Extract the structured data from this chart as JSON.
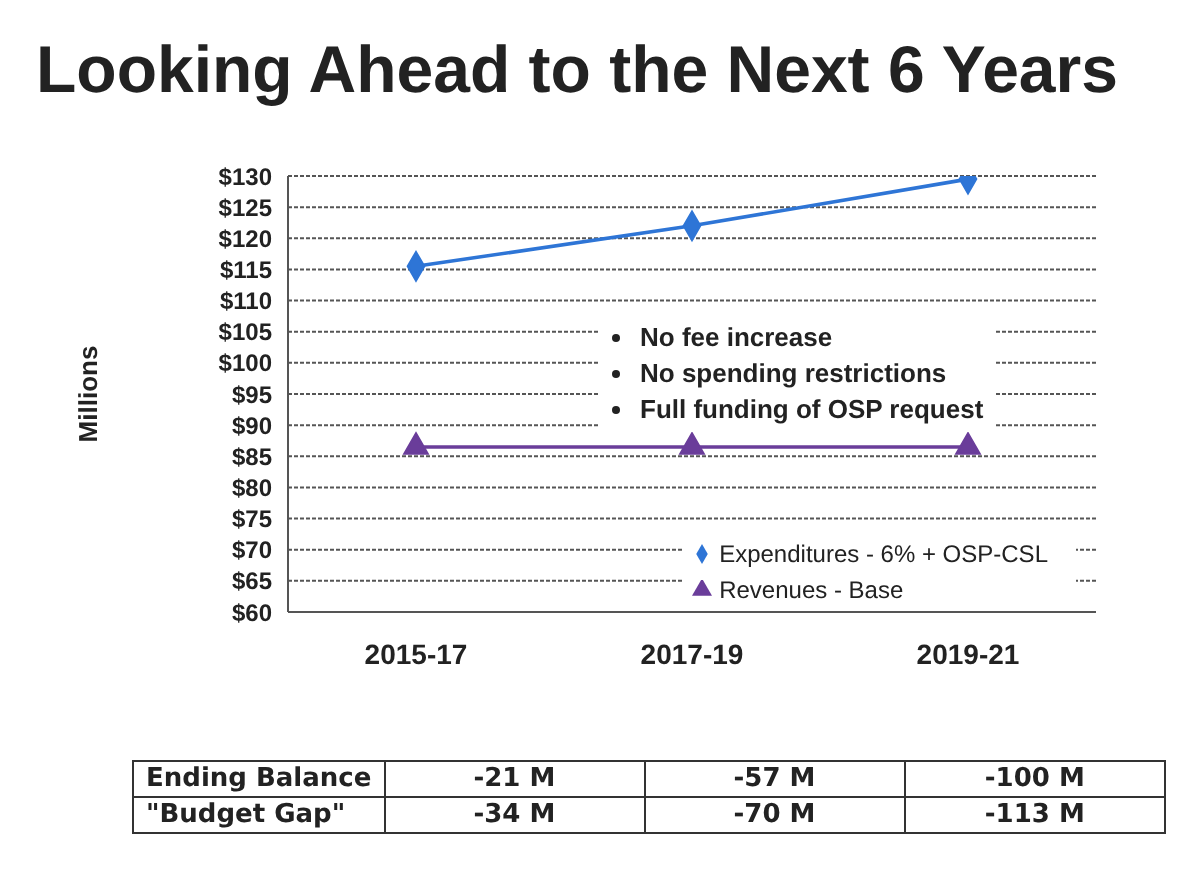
{
  "chart_data": {
    "type": "line",
    "title": "Looking Ahead to the Next 6 Years",
    "ylabel": "Millions",
    "categories": [
      "2015-17",
      "2017-19",
      "2019-21"
    ],
    "series": [
      {
        "name": "Expenditures - 6% + OSP-CSL",
        "color": "#2e75d6",
        "marker": "diamond",
        "values": [
          115.5,
          122,
          129.5
        ]
      },
      {
        "name": "Revenues - Base",
        "color": "#6a3d9a",
        "marker": "triangle",
        "values": [
          86.5,
          86.5,
          86.5
        ]
      }
    ],
    "ylim": [
      60,
      130
    ],
    "yticks": [
      {
        "value": 60,
        "label": "$60"
      },
      {
        "value": 65,
        "label": "$65"
      },
      {
        "value": 70,
        "label": "$70"
      },
      {
        "value": 75,
        "label": "$75"
      },
      {
        "value": 80,
        "label": "$80"
      },
      {
        "value": 85,
        "label": "$85"
      },
      {
        "value": 90,
        "label": "$90"
      },
      {
        "value": 95,
        "label": "$95"
      },
      {
        "value": 100,
        "label": "$100"
      },
      {
        "value": 105,
        "label": "$105"
      },
      {
        "value": 110,
        "label": "$110"
      },
      {
        "value": 115,
        "label": "$115"
      },
      {
        "value": 120,
        "label": "$120"
      },
      {
        "value": 125,
        "label": "$125"
      },
      {
        "value": 130,
        "label": "$130"
      }
    ],
    "grid": "y",
    "legend": "bottom right",
    "line_style": "solid",
    "annotations": [
      "No fee increase",
      "No spending restrictions",
      "Full funding of OSP request",
      "Ending Balance",
      "-21 M",
      "-57 M",
      "-100 M",
      "\"Budget Gap\"",
      "-34 M",
      "-70 M",
      "-113 M"
    ]
  }
}
